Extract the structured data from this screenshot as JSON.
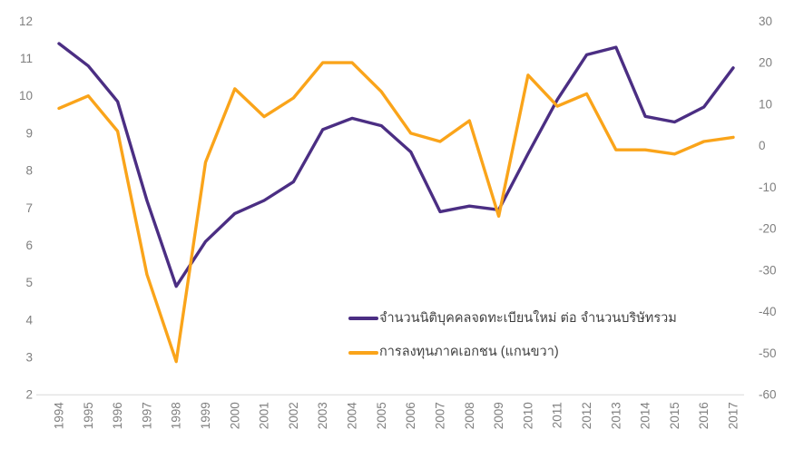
{
  "chart_data": {
    "type": "line",
    "x": [
      1994,
      1995,
      1996,
      1997,
      1998,
      1999,
      2000,
      2001,
      2002,
      2003,
      2004,
      2005,
      2006,
      2007,
      2008,
      2009,
      2010,
      2011,
      2012,
      2013,
      2014,
      2015,
      2016,
      2017
    ],
    "series": [
      {
        "name": "จำนวนนิติบุคคลจดทะเบียนใหม่ ต่อ จำนวนบริษัทรวม",
        "axis": "left",
        "color": "#4B2E83",
        "values": [
          11.4,
          10.8,
          9.85,
          7.2,
          4.9,
          6.1,
          6.85,
          7.2,
          7.7,
          9.1,
          9.4,
          9.2,
          8.5,
          6.9,
          7.05,
          6.95,
          8.45,
          9.9,
          11.1,
          11.3,
          9.45,
          9.3,
          9.7,
          10.75
        ]
      },
      {
        "name": "การลงทุนภาคเอกชน (แกนขวา)",
        "axis": "right",
        "color": "#FAA41A",
        "values": [
          9,
          12,
          3.5,
          -31,
          -52,
          -4,
          13.7,
          7,
          11.5,
          20,
          20,
          13,
          3,
          1,
          6,
          -17,
          17,
          9.5,
          12.5,
          -1,
          -1,
          -2,
          1,
          2
        ]
      }
    ],
    "left_axis": {
      "min": 2,
      "max": 12,
      "ticks": [
        12,
        11,
        10,
        9,
        8,
        7,
        6,
        5,
        4,
        3,
        2
      ]
    },
    "right_axis": {
      "min": -60,
      "max": 30,
      "ticks": [
        30,
        20,
        10,
        0,
        -10,
        -20,
        -30,
        -40,
        -50,
        -60
      ]
    },
    "title": "",
    "xlabel": "",
    "ylabel": "",
    "grid": false,
    "legend_position": "inside-bottom-center"
  },
  "colors": {
    "background": "#ffffff",
    "axis_text": "#7f7f7f",
    "axis_line": "#d9d9d9",
    "legend_text": "#3f3f3f"
  }
}
